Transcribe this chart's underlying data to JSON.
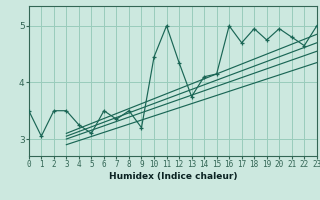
{
  "title": "",
  "xlabel": "Humidex (Indice chaleur)",
  "bg_color": "#cce8df",
  "grid_color": "#99ccbb",
  "line_color": "#1a6655",
  "spine_color": "#336655",
  "x_ticks": [
    0,
    1,
    2,
    3,
    4,
    5,
    6,
    7,
    8,
    9,
    10,
    11,
    12,
    13,
    14,
    15,
    16,
    17,
    18,
    19,
    20,
    21,
    22,
    23
  ],
  "y_ticks": [
    3,
    4,
    5
  ],
  "xlim": [
    0,
    23
  ],
  "ylim": [
    2.7,
    5.35
  ],
  "zigzag_x": [
    0,
    1,
    2,
    3,
    4,
    5,
    6,
    7,
    8,
    9,
    10,
    11,
    12,
    13,
    14,
    15,
    16,
    17,
    18,
    19,
    20,
    21,
    22,
    23
  ],
  "zigzag_y": [
    3.5,
    3.05,
    3.5,
    3.5,
    3.25,
    3.1,
    3.5,
    3.35,
    3.5,
    3.2,
    4.45,
    5.0,
    4.35,
    3.75,
    4.1,
    4.15,
    5.0,
    4.7,
    4.95,
    4.75,
    4.95,
    4.8,
    4.65,
    5.0
  ],
  "line1_x": [
    3,
    23
  ],
  "line1_y": [
    3.1,
    4.85
  ],
  "line2_x": [
    3,
    23
  ],
  "line2_y": [
    3.05,
    4.7
  ],
  "line3_x": [
    3,
    23
  ],
  "line3_y": [
    3.0,
    4.55
  ],
  "line4_x": [
    3,
    23
  ],
  "line4_y": [
    2.9,
    4.35
  ],
  "tick_fontsize": 5.5,
  "xlabel_fontsize": 6.5
}
